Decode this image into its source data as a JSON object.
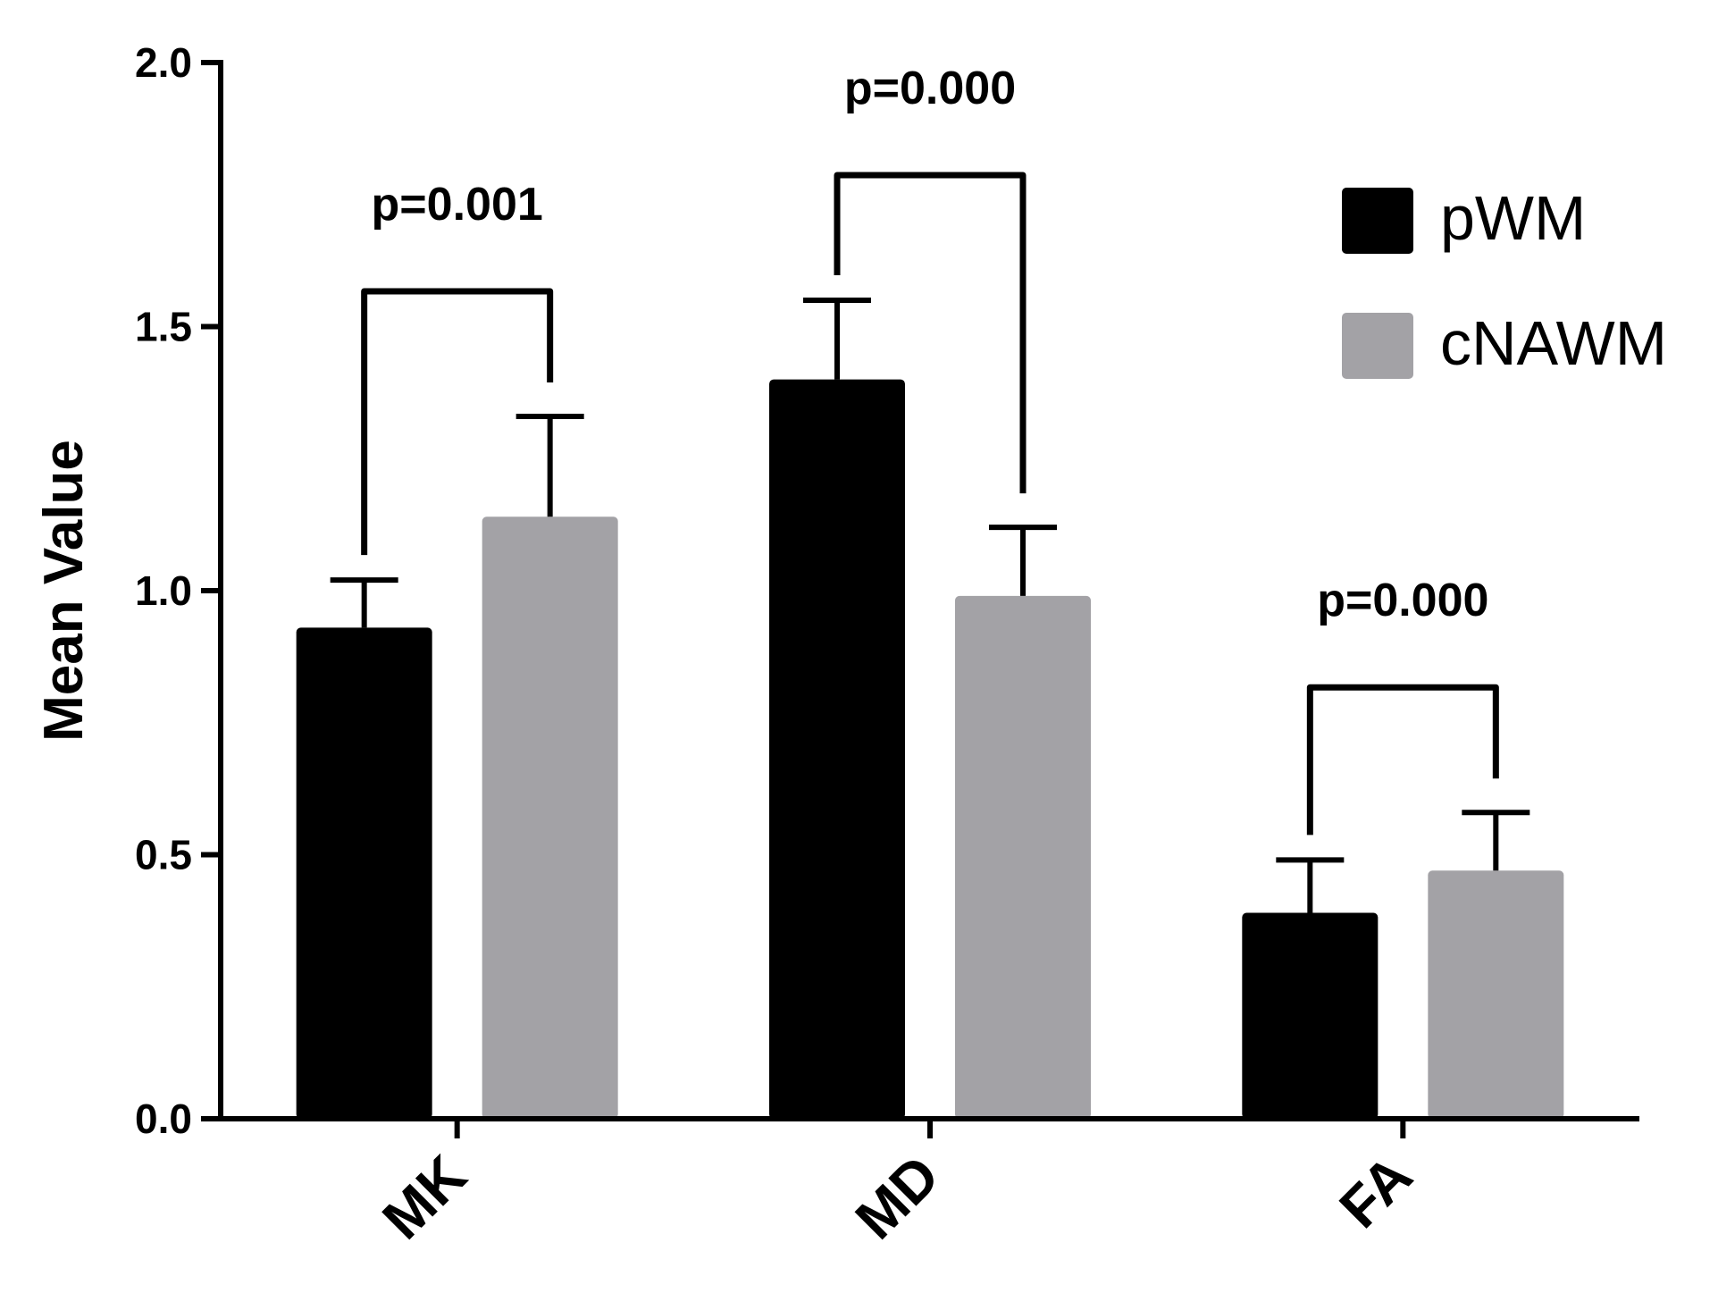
{
  "chart_data": {
    "type": "bar",
    "title": "",
    "xlabel": "",
    "ylabel": "Mean Value",
    "ylim": [
      0,
      2.0
    ],
    "yticks": [
      0.0,
      0.5,
      1.0,
      1.5,
      2.0
    ],
    "ytick_labels": [
      "0.0",
      "0.5",
      "1.0",
      "1.5",
      "2.0"
    ],
    "grid": false,
    "legend_position": "top-right",
    "categories": [
      "MK",
      "MD",
      "FA"
    ],
    "series": [
      {
        "name": "pWM",
        "color": "#000000",
        "values": [
          0.93,
          1.4,
          0.39
        ],
        "errors": [
          0.09,
          0.15,
          0.1
        ]
      },
      {
        "name": "cNAWM",
        "color": "#a3a2a6",
        "values": [
          1.14,
          0.99,
          0.47
        ],
        "errors": [
          0.19,
          0.13,
          0.11
        ]
      }
    ],
    "annotations": [
      {
        "category": "MK",
        "text": "p=0.001"
      },
      {
        "category": "MD",
        "text": "p=0.000"
      },
      {
        "category": "FA",
        "text": "p=0.000"
      }
    ]
  }
}
